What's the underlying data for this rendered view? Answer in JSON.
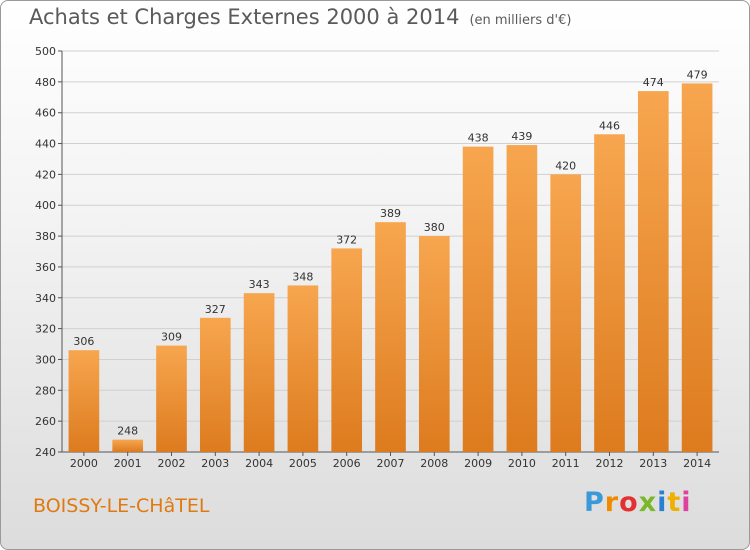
{
  "header": {
    "title": "Achats et Charges Externes 2000 à 2014",
    "unit": "(en milliers d'€)"
  },
  "footer": {
    "city": "BOISSY-LE-CHâTEL",
    "logo_letters": [
      "P",
      "r",
      "o",
      "x",
      "i",
      "t",
      "i"
    ],
    "logo_colors": [
      "#3a9ad9",
      "#f08a00",
      "#e53030",
      "#7bb828",
      "#2a7fd0",
      "#f0b000",
      "#e040a0"
    ]
  },
  "colors": {
    "bar_top": "#f7a64f",
    "bar_bottom": "#dd7b1e",
    "grid": "#d0d0d0",
    "city": "#e07a10"
  },
  "chart_data": {
    "type": "bar",
    "title": "Achats et Charges Externes 2000 à 2014",
    "xlabel": "",
    "ylabel": "",
    "categories": [
      "2000",
      "2001",
      "2002",
      "2003",
      "2004",
      "2005",
      "2006",
      "2007",
      "2008",
      "2009",
      "2010",
      "2011",
      "2012",
      "2013",
      "2014"
    ],
    "values": [
      306,
      248,
      309,
      327,
      343,
      348,
      372,
      389,
      380,
      438,
      439,
      420,
      446,
      474,
      479
    ],
    "ylim": [
      240,
      500
    ],
    "yticks": [
      240,
      260,
      280,
      300,
      320,
      340,
      360,
      380,
      400,
      420,
      440,
      460,
      480,
      500
    ],
    "grid": true,
    "data_labels": true
  }
}
